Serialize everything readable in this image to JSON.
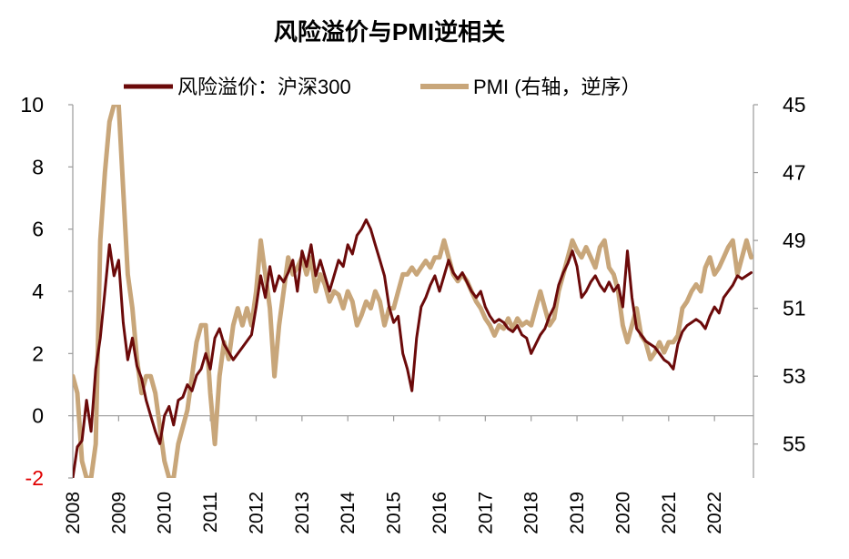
{
  "chart_data": {
    "type": "line",
    "title": "风险溢价与PMI逆相关",
    "legend_position": "top",
    "grid": false,
    "x_labels": [
      "2008",
      "2009",
      "2010",
      "2011",
      "2012",
      "2013",
      "2014",
      "2015",
      "2016",
      "2017",
      "2018",
      "2019",
      "2020",
      "2021",
      "2022"
    ],
    "left_axis": {
      "ylim": [
        -2,
        10
      ],
      "ticks": [
        "-2",
        "0",
        "2",
        "4",
        "6",
        "8",
        "10"
      ]
    },
    "right_axis": {
      "ylim": [
        45,
        56
      ],
      "inverted": true,
      "ticks": [
        "45",
        "47",
        "49",
        "51",
        "53",
        "55"
      ]
    },
    "series": [
      {
        "name": "风险溢价：沪深300",
        "axis": "left",
        "color": "#6b0a0a",
        "points": [
          [
            2008.0,
            -2.0
          ],
          [
            2008.1,
            -1.0
          ],
          [
            2008.2,
            -0.8
          ],
          [
            2008.3,
            0.5
          ],
          [
            2008.4,
            -0.5
          ],
          [
            2008.5,
            1.5
          ],
          [
            2008.6,
            2.5
          ],
          [
            2008.7,
            4.0
          ],
          [
            2008.8,
            5.5
          ],
          [
            2008.9,
            4.5
          ],
          [
            2009.0,
            5.0
          ],
          [
            2009.1,
            3.0
          ],
          [
            2009.2,
            1.8
          ],
          [
            2009.3,
            2.5
          ],
          [
            2009.4,
            1.6
          ],
          [
            2009.5,
            1.2
          ],
          [
            2009.6,
            0.5
          ],
          [
            2009.7,
            0.0
          ],
          [
            2009.8,
            -0.5
          ],
          [
            2009.9,
            -0.9
          ],
          [
            2010.0,
            0.0
          ],
          [
            2010.1,
            0.3
          ],
          [
            2010.2,
            -0.3
          ],
          [
            2010.3,
            0.5
          ],
          [
            2010.4,
            0.6
          ],
          [
            2010.5,
            1.0
          ],
          [
            2010.6,
            0.8
          ],
          [
            2010.7,
            1.3
          ],
          [
            2010.8,
            1.5
          ],
          [
            2010.9,
            2.0
          ],
          [
            2011.0,
            1.5
          ],
          [
            2011.1,
            2.5
          ],
          [
            2011.2,
            2.8
          ],
          [
            2011.3,
            2.3
          ],
          [
            2011.5,
            1.8
          ],
          [
            2011.7,
            2.2
          ],
          [
            2011.9,
            2.6
          ],
          [
            2012.0,
            3.5
          ],
          [
            2012.1,
            4.5
          ],
          [
            2012.2,
            3.8
          ],
          [
            2012.3,
            4.8
          ],
          [
            2012.4,
            4.0
          ],
          [
            2012.5,
            4.5
          ],
          [
            2012.6,
            4.3
          ],
          [
            2012.7,
            4.6
          ],
          [
            2012.8,
            5.0
          ],
          [
            2012.9,
            4.0
          ],
          [
            2013.0,
            5.3
          ],
          [
            2013.1,
            4.8
          ],
          [
            2013.2,
            5.5
          ],
          [
            2013.3,
            4.5
          ],
          [
            2013.4,
            5.0
          ],
          [
            2013.5,
            4.5
          ],
          [
            2013.6,
            4.0
          ],
          [
            2013.7,
            4.5
          ],
          [
            2013.8,
            5.0
          ],
          [
            2013.9,
            4.8
          ],
          [
            2014.0,
            5.5
          ],
          [
            2014.1,
            5.2
          ],
          [
            2014.2,
            5.8
          ],
          [
            2014.3,
            6.0
          ],
          [
            2014.4,
            6.3
          ],
          [
            2014.5,
            6.0
          ],
          [
            2014.6,
            5.5
          ],
          [
            2014.7,
            5.0
          ],
          [
            2014.8,
            4.5
          ],
          [
            2014.9,
            3.5
          ],
          [
            2015.0,
            3.0
          ],
          [
            2015.1,
            3.2
          ],
          [
            2015.2,
            2.0
          ],
          [
            2015.3,
            1.5
          ],
          [
            2015.4,
            0.8
          ],
          [
            2015.5,
            2.5
          ],
          [
            2015.6,
            3.5
          ],
          [
            2015.7,
            3.8
          ],
          [
            2015.8,
            4.2
          ],
          [
            2015.9,
            4.5
          ],
          [
            2016.0,
            4.0
          ],
          [
            2016.1,
            4.5
          ],
          [
            2016.2,
            5.0
          ],
          [
            2016.3,
            4.6
          ],
          [
            2016.4,
            4.4
          ],
          [
            2016.5,
            4.6
          ],
          [
            2016.6,
            4.3
          ],
          [
            2016.7,
            4.0
          ],
          [
            2016.8,
            3.8
          ],
          [
            2016.9,
            4.0
          ],
          [
            2017.0,
            3.5
          ],
          [
            2017.1,
            3.2
          ],
          [
            2017.2,
            3.0
          ],
          [
            2017.3,
            3.1
          ],
          [
            2017.4,
            3.0
          ],
          [
            2017.5,
            2.8
          ],
          [
            2017.6,
            2.7
          ],
          [
            2017.7,
            2.9
          ],
          [
            2017.8,
            2.6
          ],
          [
            2017.9,
            2.5
          ],
          [
            2018.0,
            2.0
          ],
          [
            2018.1,
            2.3
          ],
          [
            2018.2,
            2.6
          ],
          [
            2018.3,
            2.8
          ],
          [
            2018.4,
            3.2
          ],
          [
            2018.5,
            3.5
          ],
          [
            2018.6,
            4.2
          ],
          [
            2018.7,
            4.6
          ],
          [
            2018.8,
            4.9
          ],
          [
            2018.9,
            5.3
          ],
          [
            2019.0,
            4.8
          ],
          [
            2019.1,
            3.8
          ],
          [
            2019.2,
            4.0
          ],
          [
            2019.3,
            4.3
          ],
          [
            2019.4,
            4.5
          ],
          [
            2019.5,
            4.2
          ],
          [
            2019.6,
            4.0
          ],
          [
            2019.7,
            4.3
          ],
          [
            2019.8,
            4.0
          ],
          [
            2019.9,
            4.2
          ],
          [
            2020.0,
            3.5
          ],
          [
            2020.1,
            5.3
          ],
          [
            2020.2,
            3.8
          ],
          [
            2020.3,
            2.8
          ],
          [
            2020.4,
            2.6
          ],
          [
            2020.5,
            2.4
          ],
          [
            2020.6,
            2.3
          ],
          [
            2020.7,
            2.2
          ],
          [
            2020.8,
            2.0
          ],
          [
            2020.9,
            1.8
          ],
          [
            2021.0,
            1.7
          ],
          [
            2021.1,
            1.5
          ],
          [
            2021.2,
            2.3
          ],
          [
            2021.3,
            2.7
          ],
          [
            2021.4,
            2.9
          ],
          [
            2021.5,
            3.0
          ],
          [
            2021.6,
            3.1
          ],
          [
            2021.7,
            3.0
          ],
          [
            2021.8,
            2.8
          ],
          [
            2021.9,
            3.2
          ],
          [
            2022.0,
            3.5
          ],
          [
            2022.1,
            3.3
          ],
          [
            2022.2,
            3.8
          ],
          [
            2022.3,
            4.0
          ],
          [
            2022.4,
            4.2
          ],
          [
            2022.5,
            4.5
          ],
          [
            2022.6,
            4.4
          ],
          [
            2022.7,
            4.5
          ],
          [
            2022.8,
            4.6
          ]
        ]
      },
      {
        "name": "PMI (右轴，逆序）",
        "axis": "right",
        "color": "#c8a67a",
        "points": [
          [
            2008.0,
            53.0
          ],
          [
            2008.1,
            53.5
          ],
          [
            2008.2,
            55.5
          ],
          [
            2008.3,
            56.0
          ],
          [
            2008.4,
            56.0
          ],
          [
            2008.5,
            55.0
          ],
          [
            2008.6,
            49.0
          ],
          [
            2008.7,
            47.0
          ],
          [
            2008.8,
            45.5
          ],
          [
            2008.9,
            45.0
          ],
          [
            2009.0,
            45.0
          ],
          [
            2009.1,
            47.5
          ],
          [
            2009.2,
            50.0
          ],
          [
            2009.3,
            51.0
          ],
          [
            2009.4,
            52.5
          ],
          [
            2009.5,
            53.5
          ],
          [
            2009.6,
            53.0
          ],
          [
            2009.7,
            53.0
          ],
          [
            2009.8,
            53.5
          ],
          [
            2009.9,
            54.5
          ],
          [
            2010.0,
            55.5
          ],
          [
            2010.1,
            56.0
          ],
          [
            2010.2,
            56.0
          ],
          [
            2010.3,
            55.0
          ],
          [
            2010.4,
            54.5
          ],
          [
            2010.5,
            54.0
          ],
          [
            2010.6,
            53.0
          ],
          [
            2010.7,
            52.0
          ],
          [
            2010.8,
            51.5
          ],
          [
            2010.9,
            51.5
          ],
          [
            2011.0,
            53.5
          ],
          [
            2011.1,
            55.0
          ],
          [
            2011.2,
            53.0
          ],
          [
            2011.3,
            52.0
          ],
          [
            2011.4,
            52.5
          ],
          [
            2011.5,
            51.5
          ],
          [
            2011.6,
            51.0
          ],
          [
            2011.7,
            51.5
          ],
          [
            2011.8,
            51.0
          ],
          [
            2011.9,
            51.5
          ],
          [
            2012.0,
            50.5
          ],
          [
            2012.1,
            49.0
          ],
          [
            2012.2,
            50.0
          ],
          [
            2012.3,
            51.0
          ],
          [
            2012.4,
            53.0
          ],
          [
            2012.5,
            51.5
          ],
          [
            2012.6,
            50.5
          ],
          [
            2012.7,
            49.5
          ],
          [
            2012.8,
            50.0
          ],
          [
            2012.9,
            49.8
          ],
          [
            2013.0,
            49.5
          ],
          [
            2013.1,
            50.0
          ],
          [
            2013.2,
            49.5
          ],
          [
            2013.3,
            50.5
          ],
          [
            2013.4,
            50.0
          ],
          [
            2013.5,
            50.3
          ],
          [
            2013.6,
            50.8
          ],
          [
            2013.7,
            50.5
          ],
          [
            2013.8,
            50.6
          ],
          [
            2013.9,
            51.0
          ],
          [
            2014.0,
            50.5
          ],
          [
            2014.1,
            50.8
          ],
          [
            2014.2,
            51.5
          ],
          [
            2014.3,
            51.2
          ],
          [
            2014.4,
            50.8
          ],
          [
            2014.5,
            51.0
          ],
          [
            2014.6,
            50.5
          ],
          [
            2014.7,
            50.8
          ],
          [
            2014.8,
            51.5
          ],
          [
            2014.9,
            51.0
          ],
          [
            2015.0,
            51.0
          ],
          [
            2015.1,
            50.5
          ],
          [
            2015.2,
            50.0
          ],
          [
            2015.3,
            50.0
          ],
          [
            2015.4,
            49.8
          ],
          [
            2015.5,
            50.0
          ],
          [
            2015.6,
            49.8
          ],
          [
            2015.7,
            49.6
          ],
          [
            2015.8,
            49.8
          ],
          [
            2015.9,
            49.5
          ],
          [
            2016.0,
            49.5
          ],
          [
            2016.1,
            49.0
          ],
          [
            2016.2,
            49.5
          ],
          [
            2016.3,
            50.0
          ],
          [
            2016.4,
            50.2
          ],
          [
            2016.5,
            50.0
          ],
          [
            2016.6,
            50.2
          ],
          [
            2016.7,
            50.5
          ],
          [
            2016.8,
            50.8
          ],
          [
            2016.9,
            51.0
          ],
          [
            2017.0,
            51.3
          ],
          [
            2017.1,
            51.5
          ],
          [
            2017.2,
            51.8
          ],
          [
            2017.3,
            51.5
          ],
          [
            2017.4,
            51.6
          ],
          [
            2017.5,
            51.3
          ],
          [
            2017.6,
            51.6
          ],
          [
            2017.7,
            51.3
          ],
          [
            2017.8,
            51.5
          ],
          [
            2017.9,
            51.4
          ],
          [
            2018.0,
            51.5
          ],
          [
            2018.1,
            51.0
          ],
          [
            2018.2,
            50.5
          ],
          [
            2018.3,
            51.0
          ],
          [
            2018.4,
            51.5
          ],
          [
            2018.5,
            51.3
          ],
          [
            2018.6,
            50.5
          ],
          [
            2018.7,
            50.0
          ],
          [
            2018.8,
            49.5
          ],
          [
            2018.9,
            49.0
          ],
          [
            2019.0,
            49.3
          ],
          [
            2019.1,
            49.5
          ],
          [
            2019.2,
            49.2
          ],
          [
            2019.3,
            49.5
          ],
          [
            2019.4,
            49.8
          ],
          [
            2019.5,
            49.2
          ],
          [
            2019.6,
            49.0
          ],
          [
            2019.7,
            49.8
          ],
          [
            2019.8,
            50.0
          ],
          [
            2019.9,
            50.5
          ],
          [
            2020.0,
            51.5
          ],
          [
            2020.1,
            52.0
          ],
          [
            2020.2,
            51.5
          ],
          [
            2020.3,
            51.0
          ],
          [
            2020.4,
            51.8
          ],
          [
            2020.5,
            52.0
          ],
          [
            2020.6,
            52.5
          ],
          [
            2020.7,
            52.3
          ],
          [
            2020.8,
            52.0
          ],
          [
            2020.9,
            52.3
          ],
          [
            2021.0,
            52.0
          ],
          [
            2021.1,
            52.0
          ],
          [
            2021.2,
            51.8
          ],
          [
            2021.3,
            51.0
          ],
          [
            2021.4,
            50.8
          ],
          [
            2021.5,
            50.5
          ],
          [
            2021.6,
            50.3
          ],
          [
            2021.7,
            50.5
          ],
          [
            2021.8,
            49.8
          ],
          [
            2021.9,
            49.5
          ],
          [
            2022.0,
            50.0
          ],
          [
            2022.1,
            49.8
          ],
          [
            2022.2,
            49.5
          ],
          [
            2022.3,
            49.2
          ],
          [
            2022.4,
            49.0
          ],
          [
            2022.5,
            50.0
          ],
          [
            2022.6,
            49.5
          ],
          [
            2022.7,
            49.0
          ],
          [
            2022.8,
            49.5
          ]
        ]
      }
    ]
  }
}
